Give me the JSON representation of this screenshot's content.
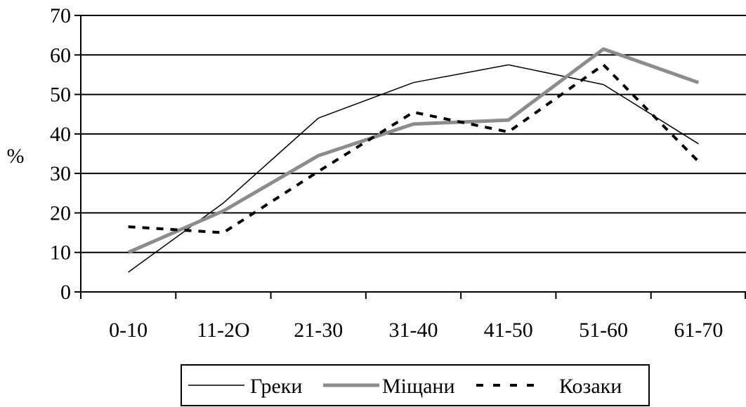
{
  "chart_data": {
    "type": "line",
    "title": "",
    "xlabel": "",
    "ylabel": "%",
    "ylim": [
      0,
      70
    ],
    "yticks": [
      0,
      10,
      20,
      30,
      40,
      50,
      60,
      70
    ],
    "grid": true,
    "legend_position": "bottom",
    "categories": [
      "0-10",
      "11-2O",
      "21-30",
      "31-40",
      "41-50",
      "51-60",
      "61-70"
    ],
    "series": [
      {
        "name": "Греки",
        "style": "thin-solid",
        "color": "#000000",
        "values": [
          5,
          22.5,
          44,
          53,
          57.5,
          52.5,
          37.5
        ]
      },
      {
        "name": "Міщани",
        "style": "thick-gray",
        "color": "#8c8c8c",
        "values": [
          10,
          20.5,
          34.5,
          42.5,
          43.5,
          61.5,
          53
        ]
      },
      {
        "name": "Козаки",
        "style": "dashed",
        "color": "#000000",
        "values": [
          16.5,
          15,
          30.5,
          45.5,
          40.5,
          57.5,
          33
        ]
      }
    ]
  }
}
